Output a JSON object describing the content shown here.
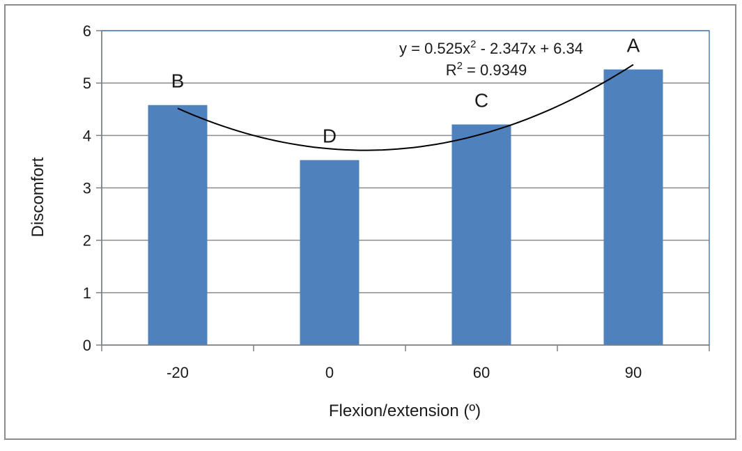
{
  "chart_data": {
    "type": "bar",
    "categories": [
      "-20",
      "0",
      "60",
      "90"
    ],
    "values": [
      4.58,
      3.53,
      4.21,
      5.26
    ],
    "bar_letters": [
      "B",
      "D",
      "C",
      "A"
    ],
    "xlabel": "Flexion/extension (º)",
    "ylabel": "Discomfort",
    "ylim": [
      0,
      6
    ],
    "yticks": [
      "0",
      "1",
      "2",
      "3",
      "4",
      "5",
      "6"
    ],
    "grid": true,
    "bar_color": "#4f81bd",
    "trendline": {
      "type": "polynomial-2",
      "coefficients": [
        0.525,
        -2.347,
        6.34
      ],
      "equation_prefix": "y = 0.525x",
      "equation_suffix": " - 2.347x + 6.34",
      "r2_prefix": "R",
      "r2_suffix": " = 0.9349",
      "superscript": "2",
      "color": "#000000"
    }
  }
}
